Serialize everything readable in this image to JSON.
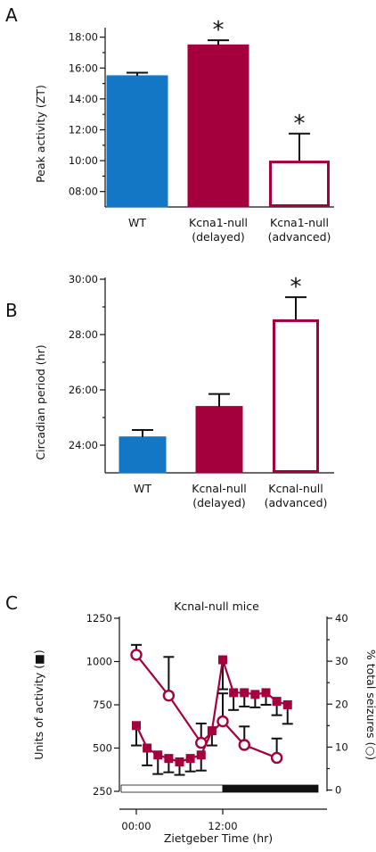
{
  "colors": {
    "blue": "#1477c6",
    "crimson": "#a4003d",
    "black": "#111111",
    "white": "#ffffff"
  },
  "chart_data": [
    {
      "panel": "A",
      "type": "bar",
      "ylabel": "Peak activity (ZT)",
      "ylim": [
        7,
        18.5
      ],
      "yticks": [
        8,
        10,
        12,
        14,
        16,
        18
      ],
      "ytick_labels": [
        "08:00",
        "10:00",
        "12:00",
        "14:00",
        "16:00",
        "18:00"
      ],
      "categories": [
        {
          "line1": "WT",
          "line2": ""
        },
        {
          "line1": "Kcna1-null",
          "line2": "(delayed)"
        },
        {
          "line1": "Kcna1-null",
          "line2": "(advanced)"
        }
      ],
      "values": [
        15.5,
        17.5,
        10.0
      ],
      "errors": [
        0.2,
        0.3,
        1.75
      ],
      "fills": [
        "#1477c6",
        "#a4003d",
        "#ffffff"
      ],
      "strokes": [
        "#1477c6",
        "#a4003d",
        "#a4003d"
      ],
      "significance": [
        "",
        "*",
        "*"
      ]
    },
    {
      "panel": "B",
      "type": "bar",
      "ylabel": "Circadian period (hr)",
      "ylim": [
        23,
        30
      ],
      "yticks": [
        24,
        26,
        28,
        30
      ],
      "ytick_labels": [
        "24:00",
        "26:00",
        "28:00",
        "30:00"
      ],
      "categories": [
        {
          "line1": "WT",
          "line2": ""
        },
        {
          "line1": "Kcnal-null",
          "line2": "(delayed)"
        },
        {
          "line1": "Kcnal-null",
          "line2": "(advanced)"
        }
      ],
      "values": [
        24.3,
        25.4,
        28.55
      ],
      "errors": [
        0.25,
        0.45,
        0.8
      ],
      "fills": [
        "#1477c6",
        "#a4003d",
        "#ffffff"
      ],
      "strokes": [
        "#1477c6",
        "#a4003d",
        "#a4003d"
      ],
      "significance": [
        "",
        "",
        "*"
      ]
    },
    {
      "panel": "C",
      "type": "line",
      "title": "Kcnal-null mice",
      "xlabel": "Zietgeber Time (hr)",
      "xlim": [
        -1.5,
        22
      ],
      "xticks": [
        0,
        12
      ],
      "xtick_labels": [
        "00:00",
        "12:00"
      ],
      "ylabel_left": "Units of activity (■)",
      "ylim_left": [
        250,
        1250
      ],
      "yticks_left": [
        250,
        500,
        750,
        1000,
        1250
      ],
      "ylabel_right": "% total seizures (○)",
      "ylim_right": [
        -0.3,
        40
      ],
      "yticks_right": [
        0,
        10,
        20,
        30,
        40
      ],
      "light_dark_bar": {
        "light": [
          0,
          12
        ],
        "dark": [
          12,
          21
        ]
      },
      "series": [
        {
          "axis": "left",
          "marker": "square",
          "x": [
            0,
            1.5,
            3,
            4.5,
            6,
            7.5,
            9,
            10.5,
            12,
            13.5,
            15,
            16.5,
            18,
            19.5,
            21
          ],
          "y": [
            630,
            500,
            460,
            440,
            420,
            440,
            460,
            600,
            1010,
            820,
            820,
            810,
            820,
            770,
            750
          ],
          "err": [
            115,
            100,
            110,
            80,
            75,
            75,
            90,
            85,
            170,
            100,
            80,
            75,
            70,
            80,
            110
          ],
          "err_dir": [
            "down",
            "down",
            "down",
            "down",
            "down",
            "down",
            "down",
            "down",
            "down",
            "down",
            "down",
            "down",
            "down",
            "down",
            "down"
          ]
        },
        {
          "axis": "right",
          "marker": "circle",
          "x": [
            0,
            4.5,
            9,
            12,
            15,
            19.5
          ],
          "y": [
            31.5,
            22.0,
            11.0,
            16.0,
            10.5,
            7.5
          ],
          "err": [
            2.3,
            9.0,
            4.5,
            6.5,
            4.3,
            4.5
          ],
          "err_dir": [
            "up",
            "up",
            "up",
            "up",
            "up",
            "up"
          ]
        }
      ]
    }
  ]
}
